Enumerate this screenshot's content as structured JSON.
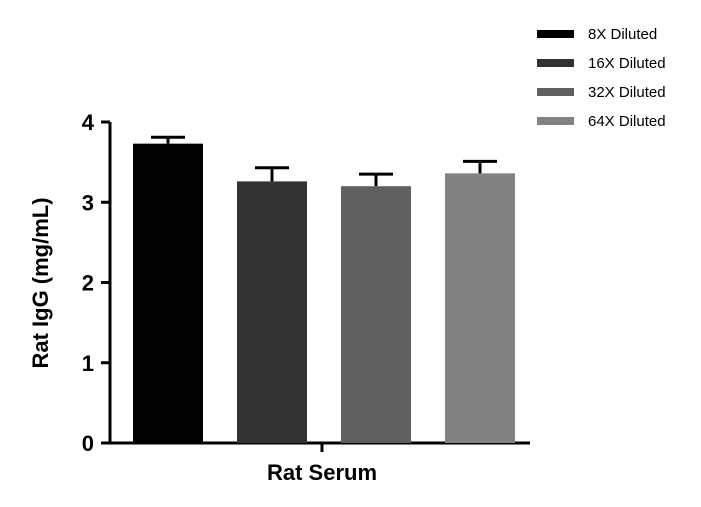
{
  "chart_data": {
    "type": "bar",
    "categories": [
      "Rat Serum"
    ],
    "xlabel": "Rat Serum",
    "ylabel": "Rat IgG (mg/mL)",
    "ylim": [
      0,
      4
    ],
    "yticks": [
      "0",
      "1",
      "2",
      "3",
      "4"
    ],
    "grid": false,
    "legend_position": "top-right",
    "series": [
      {
        "name": "8X Diluted",
        "values": [
          3.73
        ],
        "error": [
          0.08
        ],
        "color": "#000000"
      },
      {
        "name": "16X Diluted",
        "values": [
          3.26
        ],
        "error": [
          0.17
        ],
        "color": "#333333"
      },
      {
        "name": "32X Diluted",
        "values": [
          3.2
        ],
        "error": [
          0.15
        ],
        "color": "#606060"
      },
      {
        "name": "64X Diluted",
        "values": [
          3.36
        ],
        "error": [
          0.15
        ],
        "color": "#828282"
      }
    ]
  }
}
